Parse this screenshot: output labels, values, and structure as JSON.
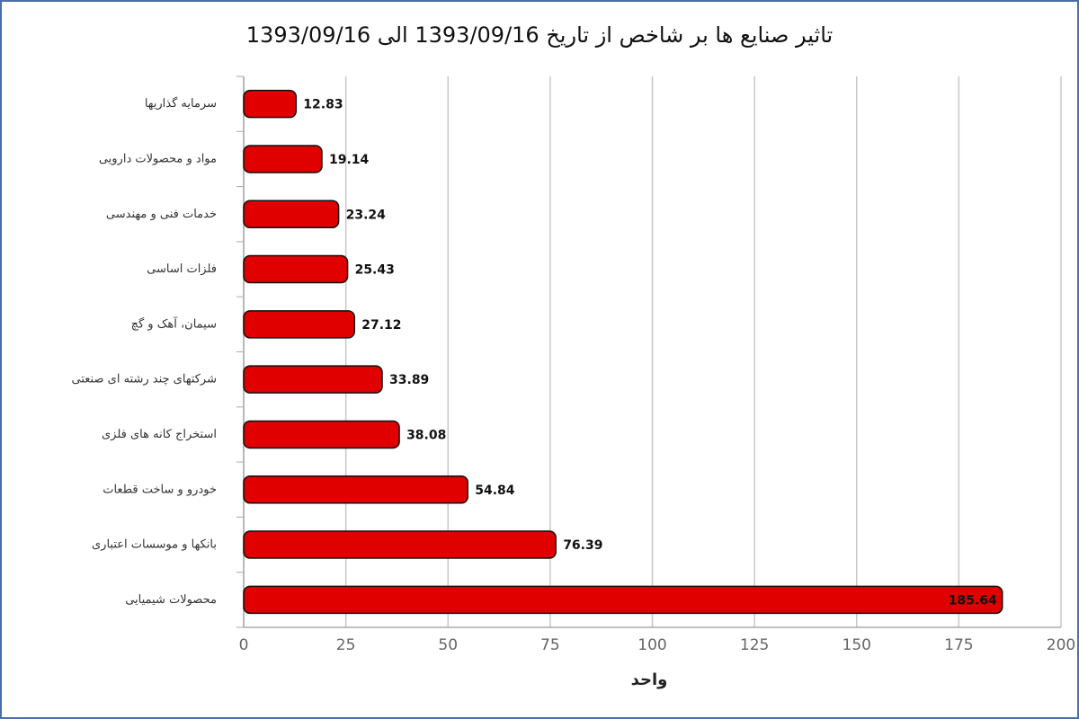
{
  "chart_data": {
    "type": "bar",
    "orientation": "horizontal",
    "title": "تاثیر صنایع ها بر شاخص از تاریخ 1393/09/16 الی 1393/09/16",
    "x_label": "واحد",
    "categories": [
      "سرمایه گذاریها",
      "مواد و محصولات دارویی",
      "خدمات فنی و مهندسی",
      "فلزات اساسی",
      "سیمان، آهک و گچ",
      "شرکتهای چند رشته ای صنعتی",
      "استخراج کانه های فلزی",
      "خودرو و ساخت قطعات",
      "بانکها و موسسات اعتباری",
      "محصولات شیمیایی"
    ],
    "values": [
      12.83,
      19.14,
      23.24,
      25.43,
      27.12,
      33.89,
      38.08,
      54.84,
      76.39,
      185.64
    ],
    "color": "#e00000",
    "xlim": [
      0,
      200
    ],
    "xticks": [
      0,
      25,
      50,
      75,
      100,
      125,
      150,
      175,
      200
    ],
    "grid": true
  }
}
